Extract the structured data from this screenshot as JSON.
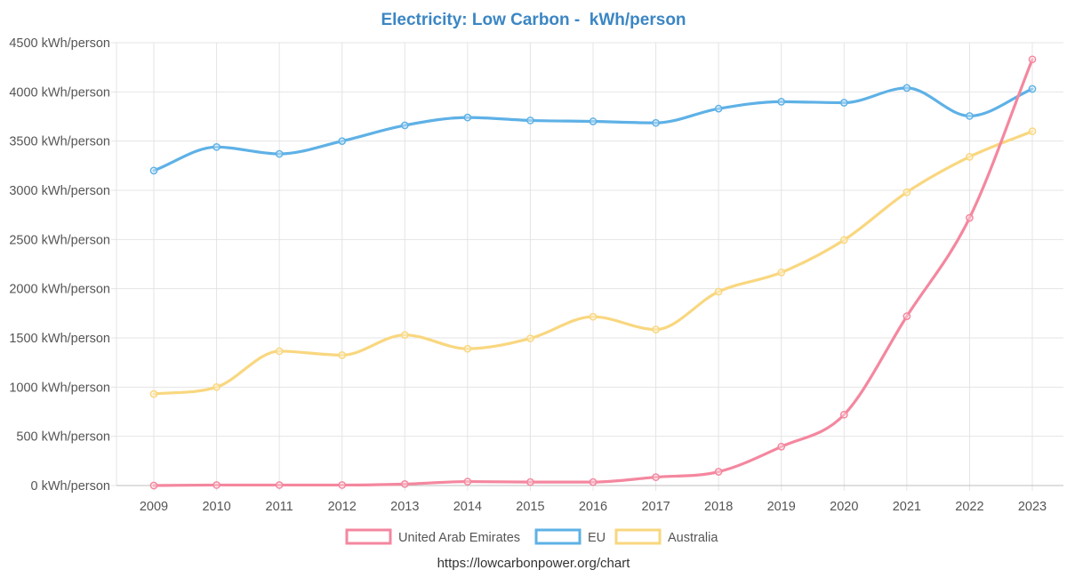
{
  "chart_data": {
    "type": "line",
    "title": "Electricity: Low Carbon -  kWh/person",
    "x": [
      2009,
      2010,
      2011,
      2012,
      2013,
      2014,
      2015,
      2016,
      2017,
      2018,
      2019,
      2020,
      2021,
      2022,
      2023
    ],
    "x_tick_labels": [
      "2009",
      "2010",
      "2011",
      "2012",
      "2013",
      "2014",
      "2015",
      "2016",
      "2017",
      "2018",
      "2019",
      "2020",
      "2021",
      "2022",
      "2023"
    ],
    "ylim": [
      0,
      4500
    ],
    "y_ticks": [
      0,
      500,
      1000,
      1500,
      2000,
      2500,
      3000,
      3500,
      4000,
      4500
    ],
    "y_tick_labels": [
      "0 kWh/person",
      "500 kWh/person",
      "1000 kWh/person",
      "1500 kWh/person",
      "2000 kWh/person",
      "2500 kWh/person",
      "3000 kWh/person",
      "3500 kWh/person",
      "4000 kWh/person",
      "4500 kWh/person"
    ],
    "grid": true,
    "legend_position": "bottom",
    "series": [
      {
        "name": "United Arab Emirates",
        "color": "#f4879f",
        "values": [
          0,
          5,
          5,
          5,
          15,
          40,
          35,
          35,
          85,
          140,
          395,
          720,
          1720,
          2720,
          4330
        ]
      },
      {
        "name": "EU",
        "color": "#5eb1e6",
        "values": [
          3200,
          3440,
          3370,
          3500,
          3660,
          3740,
          3710,
          3700,
          3685,
          3830,
          3900,
          3890,
          4040,
          3755,
          4030
        ]
      },
      {
        "name": "Australia",
        "color": "#f9d77f",
        "values": [
          930,
          1000,
          1365,
          1325,
          1530,
          1390,
          1495,
          1715,
          1585,
          1970,
          2165,
          2495,
          2980,
          3340,
          3600
        ]
      }
    ],
    "source_note": "https://lowcarbonpower.org/chart"
  }
}
